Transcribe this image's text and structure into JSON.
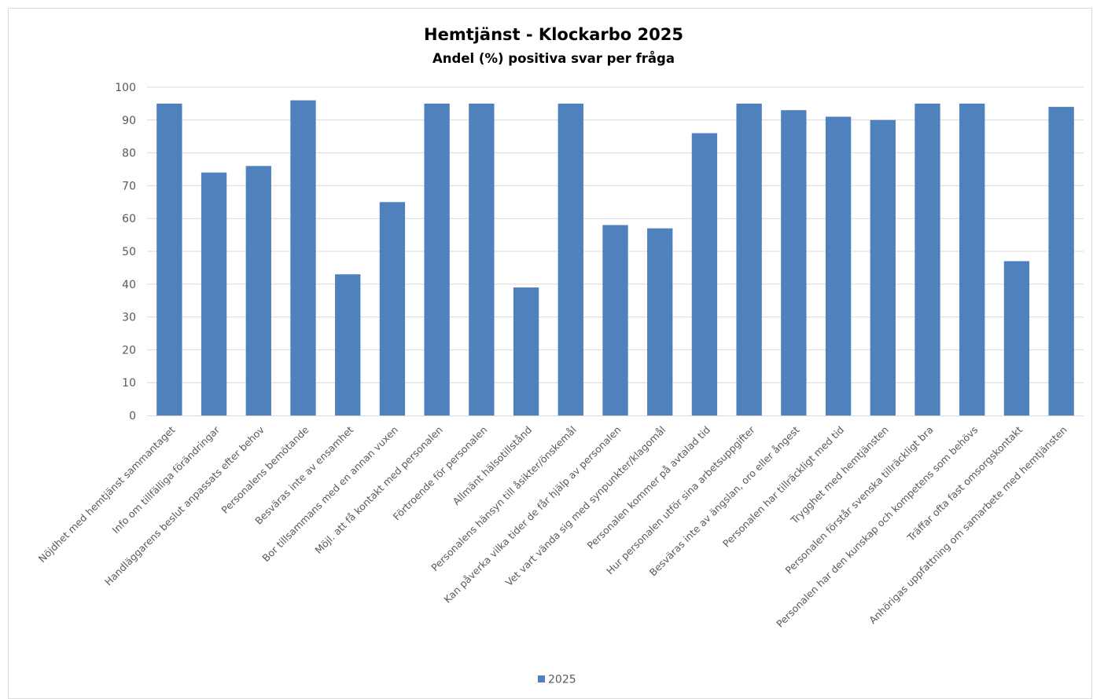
{
  "chart_data": {
    "type": "bar",
    "title": "Hemtjänst - Klockarbo 2025",
    "subtitle": "Andel (%) positiva svar per fråga",
    "xlabel": "",
    "ylabel": "",
    "ylim": [
      0,
      100
    ],
    "yticks": [
      "0",
      "10",
      "20",
      "30",
      "40",
      "50",
      "60",
      "70",
      "80",
      "90",
      "100"
    ],
    "grid": true,
    "legend_position": "bottom",
    "bar_color": "#4f81bd",
    "categories": [
      "Nöjdhet med hemtjänst sammantaget",
      "Info om tillfälliga förändringar",
      "Handläggarens beslut anpassats efter behov",
      "Personalens bemötande",
      "Besväras inte av ensamhet",
      "Bor tillsammans med en annan vuxen",
      "Möjl. att få kontakt med personalen",
      "Förtroende för personalen",
      "Allmänt hälsotillstånd",
      "Personalens hänsyn till åsikter/önskemål",
      "Kan påverka vilka tider de får hjälp av personalen",
      "Vet vart vända sig med synpunkter/klagomål",
      "Personalen kommer på avtalad tid",
      "Hur personalen utför sina arbetsuppgifter",
      "Besväras inte av ängslan, oro eller ångest",
      "Personalen har tillräckligt med tid",
      "Trygghet med hemtjänsten",
      "Personalen förstår svenska tillräckligt bra",
      "Personalen har den kunskap och kompetens som behövs",
      "Träffar ofta fast omsorgskontakt",
      "Anhörigas uppfattning om samarbete med hemtjänsten"
    ],
    "series": [
      {
        "name": "2025",
        "values": [
          95,
          74,
          76,
          96,
          43,
          65,
          95,
          95,
          39,
          95,
          58,
          57,
          86,
          95,
          93,
          91,
          90,
          95,
          95,
          47,
          94
        ]
      }
    ]
  }
}
